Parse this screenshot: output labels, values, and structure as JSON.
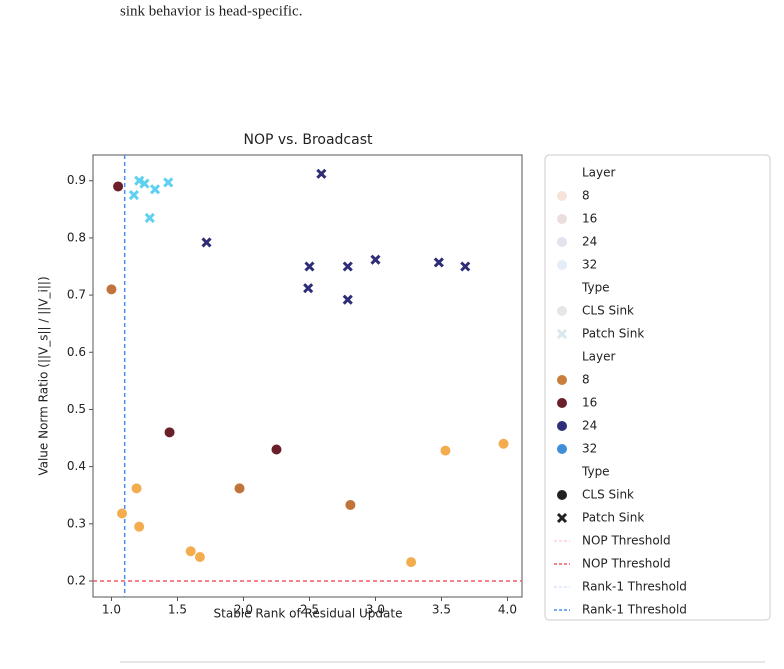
{
  "page_text": {
    "caption_fragment": "sink behavior is head-specific."
  },
  "chart_data": {
    "type": "scatter",
    "title": "NOP vs. Broadcast",
    "x_label": "Stable Rank of Residual Update",
    "y_label": "Value Norm Ratio (||V_s|| / ||V_i||)",
    "xlim": [
      0.86,
      4.11
    ],
    "ylim": [
      0.172,
      0.945
    ],
    "xticks": [
      {
        "value": 1,
        "label": "1.0"
      },
      1.5,
      {
        "value": 2,
        "label": "2.0"
      },
      2.5,
      {
        "value": 3,
        "label": "3.0"
      },
      3.5,
      {
        "value": 4,
        "label": "4.0"
      }
    ],
    "yticks": [
      0.2,
      0.3,
      0.4,
      0.5,
      0.6,
      0.7,
      0.8,
      0.9
    ],
    "grid": false,
    "series": [
      {
        "marker": "circle",
        "color": "#c0733a",
        "x": [
          1.0,
          1.97,
          2.81
        ],
        "values": [
          0.71,
          0.362,
          0.333
        ]
      },
      {
        "marker": "circle",
        "color": "#f3ad4e",
        "x": [
          1.08,
          1.19,
          1.21,
          1.6,
          1.67,
          3.27,
          3.53,
          3.97
        ],
        "values": [
          0.318,
          0.362,
          0.295,
          0.252,
          0.242,
          0.233,
          0.428,
          0.44
        ]
      },
      {
        "marker": "circle",
        "color": "#6b1f2a",
        "x": [
          1.05,
          1.44,
          2.25
        ],
        "values": [
          0.89,
          0.46,
          0.43
        ]
      },
      {
        "marker": "x",
        "color": "#2e2d78",
        "x": [
          1.72,
          2.59,
          2.5,
          2.49,
          2.79,
          2.79,
          3.0,
          3.48,
          3.68
        ],
        "values": [
          0.792,
          0.912,
          0.75,
          0.712,
          0.75,
          0.692,
          0.762,
          0.757,
          0.75
        ]
      },
      {
        "marker": "x",
        "color": "#5fd0f2",
        "x": [
          1.17,
          1.21,
          1.25,
          1.29,
          1.33,
          1.43
        ],
        "values": [
          0.875,
          0.9,
          0.895,
          0.835,
          0.885,
          0.897
        ]
      }
    ],
    "hlines": [
      {
        "value": 0.2,
        "color": "#f05a6a"
      }
    ],
    "vlines": [
      {
        "value": 1.1,
        "color": "#4a8ef0"
      }
    ],
    "legend": [
      {
        "label": "Layer"
      },
      {
        "label": "8",
        "marker": "circle",
        "color": "#f7e4d8"
      },
      {
        "label": "16",
        "marker": "circle",
        "color": "#ecdede"
      },
      {
        "label": "24",
        "marker": "circle",
        "color": "#e3e3ee"
      },
      {
        "label": "32",
        "marker": "circle",
        "color": "#e5edf8"
      },
      {
        "label": "Type"
      },
      {
        "label": "CLS Sink",
        "marker": "circle",
        "color": "#e6e6e6"
      },
      {
        "label": "Patch Sink",
        "marker": "x",
        "color": "#d9e6ee"
      },
      {
        "label": "Layer"
      },
      {
        "label": "8",
        "marker": "circle",
        "color": "#c87f3b"
      },
      {
        "label": "16",
        "marker": "circle",
        "color": "#6b1f2a"
      },
      {
        "label": "24",
        "marker": "circle",
        "color": "#2e2d78"
      },
      {
        "label": "32",
        "marker": "circle",
        "color": "#3f8fd8"
      },
      {
        "label": "Type"
      },
      {
        "label": "CLS Sink",
        "marker": "circle",
        "color": "#222222"
      },
      {
        "label": "Patch Sink",
        "marker": "x",
        "color": "#222222"
      },
      {
        "label": "NOP Threshold",
        "marker": "dash",
        "color": "#fbd2d6"
      },
      {
        "label": "NOP Threshold",
        "marker": "dash",
        "color": "#f05a6a"
      },
      {
        "label": "Rank-1 Threshold",
        "marker": "dash",
        "color": "#d6e5f8"
      },
      {
        "label": "Rank-1 Threshold",
        "marker": "dash",
        "color": "#4a8ef0"
      }
    ]
  }
}
